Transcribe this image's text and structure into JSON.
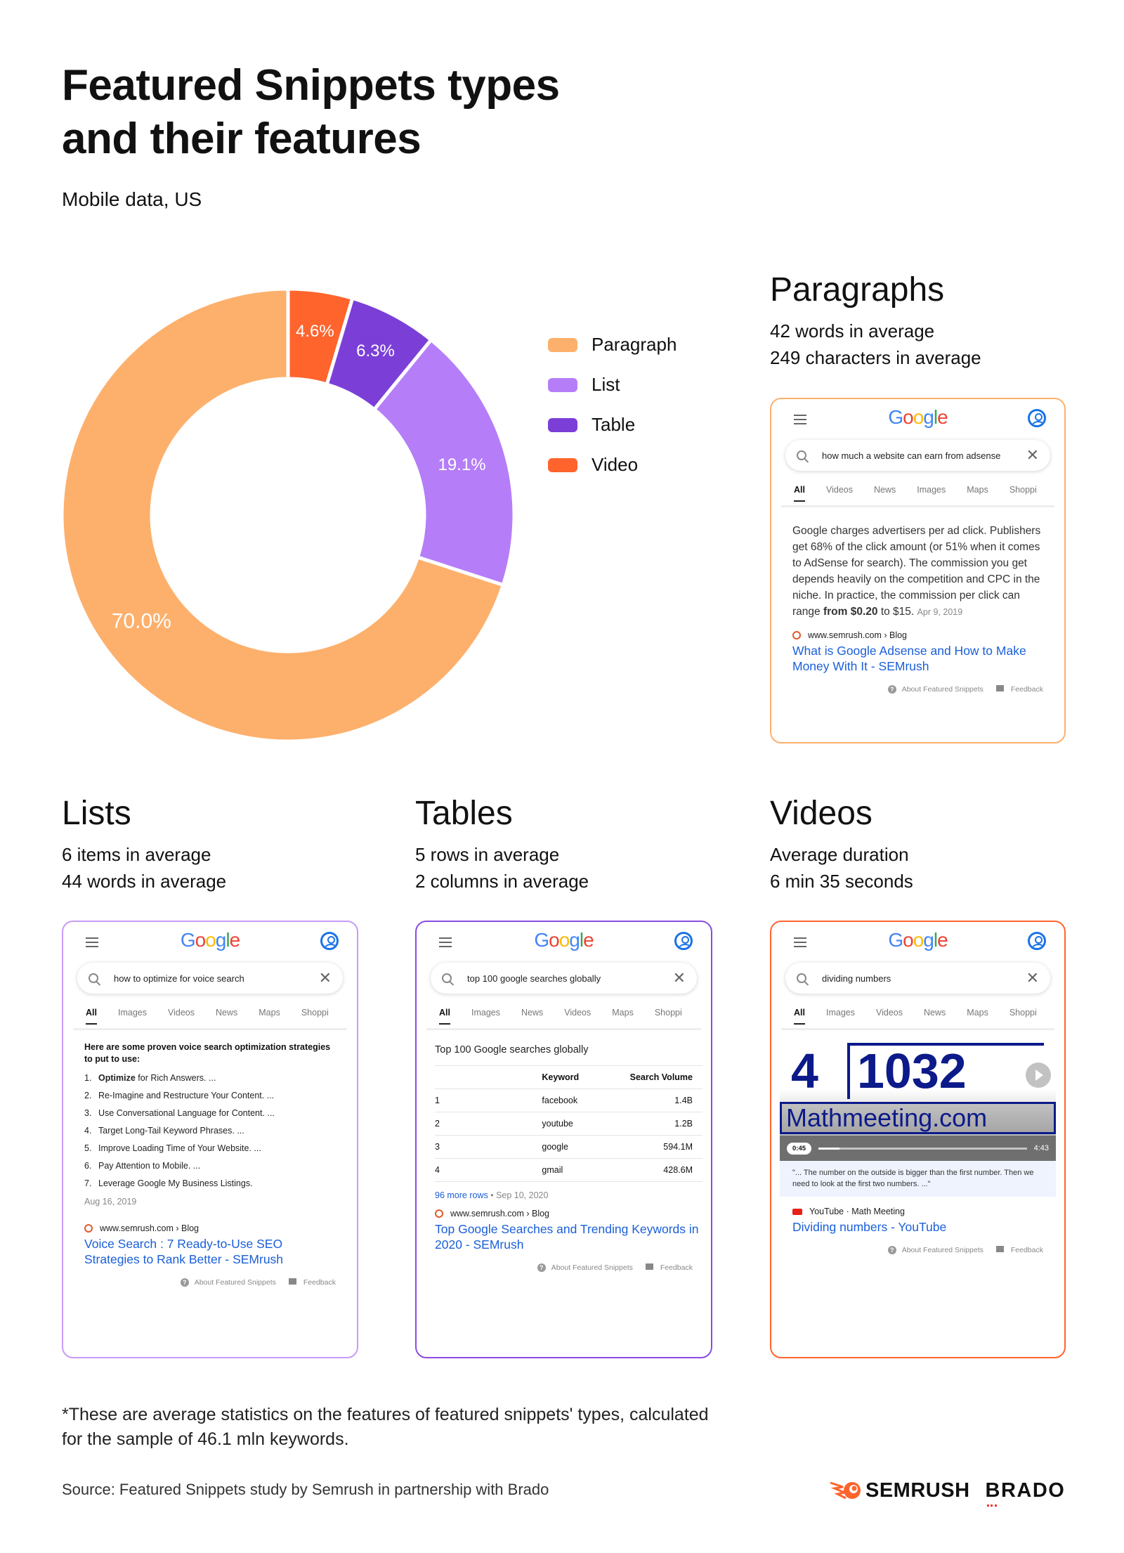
{
  "title_line1": "Featured Snippets types",
  "title_line2": "and their features",
  "subtitle": "Mobile data, US",
  "chart_data": {
    "type": "pie",
    "variant": "donut",
    "categories": [
      "Video",
      "Table",
      "List",
      "Paragraph"
    ],
    "values": [
      4.6,
      6.3,
      19.1,
      70.0
    ],
    "labels": [
      "4.6%",
      "6.3%",
      "19.1%",
      "70.0%"
    ],
    "colors": [
      "#FF642D",
      "#7B3FD8",
      "#B57EF8",
      "#FDB06C"
    ],
    "legend": [
      {
        "name": "Paragraph",
        "color": "#FDB06C"
      },
      {
        "name": "List",
        "color": "#B57EF8"
      },
      {
        "name": "Table",
        "color": "#7B3FD8"
      },
      {
        "name": "Video",
        "color": "#FF642D"
      }
    ],
    "legend_position": "right"
  },
  "sections": {
    "paragraphs": {
      "heading": "Paragraphs",
      "line1": "42 words in average",
      "line2": "249 characters in average",
      "border": "#FDB06C"
    },
    "lists": {
      "heading": "Lists",
      "line1": "6 items in average",
      "line2": "44 words in average",
      "border": "#C79BF9"
    },
    "tables": {
      "heading": "Tables",
      "line1": "5 rows in average",
      "line2": "2 columns in average",
      "border": "#8A4CE0"
    },
    "videos": {
      "heading": "Videos",
      "line1": "Average duration",
      "line2": "6 min 35 seconds",
      "border": "#FF642D"
    }
  },
  "google_logo": "Google",
  "footer_about": "About Featured Snippets",
  "footer_feedback": "Feedback",
  "cards": {
    "paragraphs": {
      "query": "how much a website can earn from adsense",
      "tabs": [
        "All",
        "Videos",
        "News",
        "Images",
        "Maps",
        "Shoppi"
      ],
      "text": "Google charges advertisers per ad click. Publishers get 68% of the click amount (or 51% when it comes to AdSense for search). The commission you get depends heavily on the competition and CPC in the niche. In practice, the commission per click can range",
      "text_bold": "from $0.20",
      "text_end": " to $15.",
      "date": "Apr 9, 2019",
      "source": "www.semrush.com › Blog",
      "link": "What is Google Adsense and How to Make Money With It - SEMrush"
    },
    "lists": {
      "query": "how to optimize for voice search",
      "tabs": [
        "All",
        "Images",
        "Videos",
        "News",
        "Maps",
        "Shoppi"
      ],
      "intro": "Here are some proven voice search optimization strategies to put to use:",
      "items": [
        {
          "bold": "Optimize",
          "rest": " for Rich Answers. ..."
        },
        {
          "bold": "",
          "rest": "Re-Imagine and Restructure Your Content. ..."
        },
        {
          "bold": "",
          "rest": "Use Conversational Language for Content. ..."
        },
        {
          "bold": "",
          "rest": "Target Long-Tail Keyword Phrases. ..."
        },
        {
          "bold": "",
          "rest": "Improve Loading Time of Your Website. ..."
        },
        {
          "bold": "",
          "rest": "Pay Attention to Mobile. ..."
        },
        {
          "bold": "",
          "rest": "Leverage Google My Business Listings."
        }
      ],
      "date": "Aug 16, 2019",
      "source": "www.semrush.com › Blog",
      "link": "Voice Search : 7 Ready-to-Use SEO Strategies to Rank Better - SEMrush"
    },
    "tables": {
      "query": "top 100 google searches globally",
      "tabs": [
        "All",
        "Images",
        "News",
        "Videos",
        "Maps",
        "Shoppi"
      ],
      "table_title": "Top 100 Google searches globally",
      "columns": [
        "",
        "Keyword",
        "Search Volume"
      ],
      "rows": [
        [
          "1",
          "facebook",
          "1.4B"
        ],
        [
          "2",
          "youtube",
          "1.2B"
        ],
        [
          "3",
          "google",
          "594.1M"
        ],
        [
          "4",
          "gmail",
          "428.6M"
        ]
      ],
      "more_rows": "96 more rows",
      "date": "Sep 10, 2020",
      "source": "www.semrush.com › Blog",
      "link": "Top Google Searches and Trending Keywords in 2020 - SEMrush"
    },
    "videos": {
      "query": "dividing numbers",
      "tabs": [
        "All",
        "Images",
        "Videos",
        "News",
        "Maps",
        "Shoppi"
      ],
      "thumb_divisor": "4",
      "thumb_dividend": "1032",
      "thumb_site": "Mathmeeting.com",
      "timestamp": "0:45",
      "duration": "4:43",
      "progress": 0.1,
      "quote": "\"... The number on the outside is bigger than the first number. Then we need to look at the first two numbers. ...\"",
      "source": "YouTube · Math Meeting",
      "link": "Dividing numbers - YouTube"
    }
  },
  "footnote": "*These are average statistics on the features of featured snippets' types, calculated for the sample of 46.1 mln keywords.",
  "source": "Source: Featured Snippets study by Semrush in partnership with Brado",
  "logos": {
    "semrush": "SEMRUSH",
    "brado": "BRADO"
  }
}
